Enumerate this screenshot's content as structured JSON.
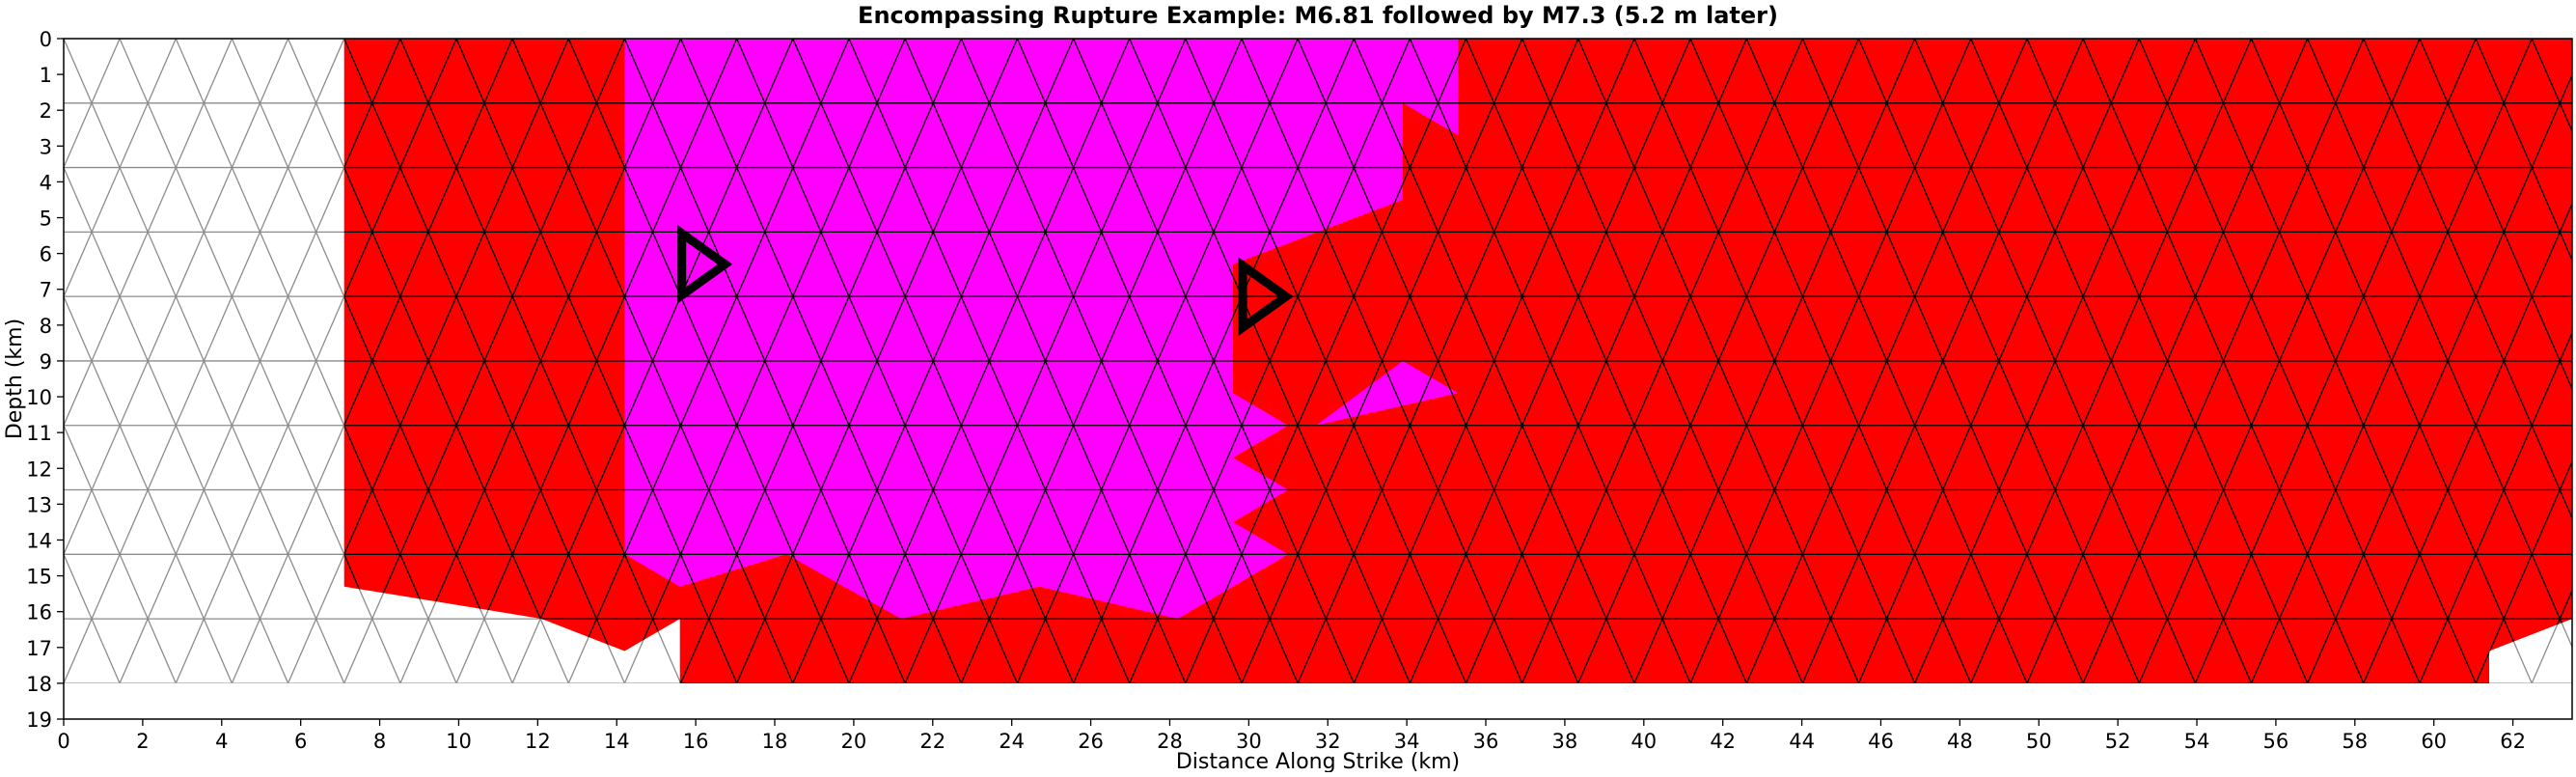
{
  "chart_data": {
    "type": "heatmap",
    "title": "Encompassing Rupture Example: M6.81 followed by M7.3 (5.2 m later)",
    "xlabel": "Distance Along Strike (km)",
    "ylabel": "Depth (km)",
    "xlim": [
      0,
      63.5
    ],
    "ylim": [
      19,
      0
    ],
    "xticks": [
      0,
      2,
      4,
      6,
      8,
      10,
      12,
      14,
      16,
      18,
      20,
      22,
      24,
      26,
      28,
      30,
      32,
      34,
      36,
      38,
      40,
      42,
      44,
      46,
      48,
      50,
      52,
      54,
      56,
      58,
      60,
      62
    ],
    "yticks": [
      0,
      1,
      2,
      3,
      4,
      5,
      6,
      7,
      8,
      9,
      10,
      11,
      12,
      13,
      14,
      15,
      16,
      17,
      18,
      19
    ],
    "mesh": {
      "fault_depth_km": 18,
      "row_height_km": 1.8,
      "triangle_base_km": 1.42,
      "edge_color": "#000000",
      "unruptured_edge_color": "#8c8c8c"
    },
    "colors": {
      "unruptured": "#ffffff",
      "second_event_M7.3": "#ff0000",
      "first_event_M6.81": "#ff00ff",
      "hypocenter_marker": "#000000"
    },
    "ruptures": [
      {
        "name": "M7.3",
        "color": "#ff0000",
        "outline": [
          [
            7.1,
            0
          ],
          [
            63.5,
            0
          ],
          [
            63.5,
            16.2
          ],
          [
            61.4,
            17.1
          ],
          [
            61.4,
            18
          ],
          [
            15.6,
            18
          ],
          [
            15.6,
            16.2
          ],
          [
            14.2,
            17.1
          ],
          [
            12.1,
            16.2
          ],
          [
            7.1,
            15.3
          ]
        ],
        "hypocenter": {
          "x": 30.2,
          "y": 7.2
        }
      },
      {
        "name": "M6.81",
        "color": "#ff00ff",
        "outline": [
          [
            14.2,
            0
          ],
          [
            35.3,
            0
          ],
          [
            35.3,
            2.7
          ],
          [
            33.9,
            1.8
          ],
          [
            33.9,
            4.5
          ],
          [
            29.6,
            6.3
          ],
          [
            29.6,
            9.9
          ],
          [
            31.0,
            10.8
          ],
          [
            29.6,
            11.7
          ],
          [
            31.0,
            12.6
          ],
          [
            29.6,
            13.5
          ],
          [
            31.0,
            14.4
          ],
          [
            28.2,
            16.2
          ],
          [
            24.7,
            15.3
          ],
          [
            21.2,
            16.2
          ],
          [
            18.3,
            14.4
          ],
          [
            15.6,
            15.3
          ],
          [
            14.2,
            14.4
          ]
        ],
        "island": [
          [
            31.7,
            10.8
          ],
          [
            33.9,
            9.0
          ],
          [
            35.3,
            9.9
          ]
        ],
        "hypocenter": {
          "x": 16.0,
          "y": 6.3
        }
      }
    ]
  }
}
